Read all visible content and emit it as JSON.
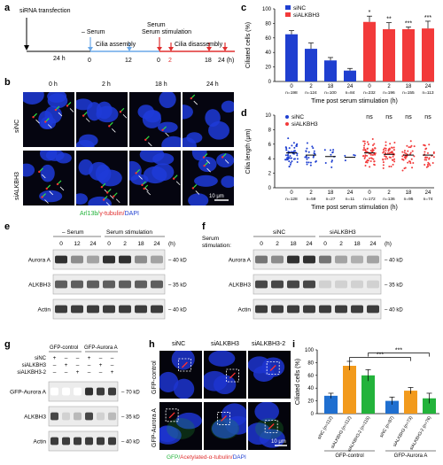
{
  "labels": {
    "a": "a",
    "b": "b",
    "c": "c",
    "d": "d",
    "e": "e",
    "f": "f",
    "g": "g",
    "h": "h",
    "i": "i"
  },
  "panel_a": {
    "transfection": "siRNA transfection",
    "hours24": "24 h",
    "minus_serum": "– Serum",
    "cilia_assembly": "Cilia assembly",
    "serum_stim": "Serum stimulation",
    "cilia_disassembly": "Cilia disassembly",
    "t0": "0",
    "t12": "12",
    "t0b": "0",
    "t2": "2",
    "t18": "18",
    "t24": "24 (h)",
    "colors": {
      "assembly": "#6aa8e8",
      "disassembly": "#e03030"
    }
  },
  "panel_b": {
    "cols": [
      "0 h",
      "2 h",
      "18 h",
      "24 h"
    ],
    "rows": [
      "siNC",
      "siALKBH3"
    ],
    "stain_arl": "Arl13b/",
    "stain_tub": "γ-tubulin/",
    "stain_dapi": "DAPI",
    "scale": "10 μm"
  },
  "panel_c": {
    "ylabel": "Ciliated cells (%)",
    "xlabel": "Time post serum stimulation (h)",
    "legend": [
      "siNC",
      "siALKBH3"
    ],
    "ticks_x": [
      "0",
      "2",
      "18",
      "24",
      "0",
      "2",
      "18",
      "24"
    ],
    "ticks_y": [
      "0",
      "20",
      "40",
      "60",
      "80",
      "100"
    ],
    "n": [
      "n=198",
      "n=124",
      "n=100",
      "n=84",
      "n=232",
      "n=196",
      "n=155",
      "n=113"
    ],
    "sig": [
      "*",
      "**",
      "***",
      "***"
    ]
  },
  "panel_d": {
    "ylabel": "Cilia length (μm)",
    "xlabel": "Time post serum stimulation (h)",
    "legend": [
      "siNC",
      "siALKBH3"
    ],
    "ticks_x": [
      "0",
      "2",
      "18",
      "24",
      "0",
      "2",
      "18",
      "24"
    ],
    "ticks_y": [
      "0",
      "2",
      "4",
      "6",
      "8",
      "10"
    ],
    "n": [
      "n=128",
      "n=59",
      "n=27",
      "n=11",
      "n=172",
      "n=136",
      "n=95",
      "n=74"
    ],
    "sig": [
      "ns",
      "ns",
      "ns",
      "ns"
    ]
  },
  "panel_e": {
    "minus_serum": "– Serum",
    "serum_stim": "Serum stimulation",
    "times": [
      "0",
      "12",
      "24",
      "0",
      "2",
      "18",
      "24"
    ],
    "unit": "(h)",
    "rows": [
      "Aurora A",
      "ALKBH3",
      "Actin"
    ],
    "mw": [
      "40 kD",
      "35 kD",
      "40 kD"
    ]
  },
  "panel_f": {
    "serum_label": "Serum",
    "stim_label": "stimulation:",
    "groups": [
      "siNC",
      "siALKBH3"
    ],
    "times": [
      "0",
      "2",
      "18",
      "24",
      "0",
      "2",
      "18",
      "24"
    ],
    "unit": "(h)",
    "rows": [
      "Aurora A",
      "ALKBH3",
      "Actin"
    ],
    "mw": [
      "40 kD",
      "35 kD",
      "40 kD"
    ]
  },
  "panel_g": {
    "groups": [
      "GFP-control",
      "GFP-Aurora A"
    ],
    "conditions": [
      "siNC",
      "siALKBH3",
      "siALKBH3-2"
    ],
    "signs": [
      [
        "+",
        "–",
        "–",
        "+",
        "–",
        "–"
      ],
      [
        "–",
        "+",
        "–",
        "–",
        "+",
        "–"
      ],
      [
        "–",
        "–",
        "+",
        "–",
        "–",
        "+"
      ]
    ],
    "rows": [
      "GFP-Aurora A",
      "ALKBH3",
      "Actin"
    ],
    "mw": [
      "70 kD",
      "35 kD",
      "40 kD"
    ]
  },
  "panel_h": {
    "cols": [
      "siNC",
      "siALKBH3",
      "siALKBH3-2"
    ],
    "rows": [
      "GFP-control",
      "GFP-Aurora A"
    ],
    "stain_gfp": "GFP/",
    "stain_tub": "Acetylated-α-tubulin/",
    "stain_dapi": "DAPI",
    "scale": "10 μm"
  },
  "panel_i": {
    "ylabel": "Ciliated cells (%)",
    "ticks_y": [
      "0",
      "20",
      "40",
      "60",
      "80",
      "100"
    ],
    "bars": [
      "siNC (n=112)",
      "siALKBH3 (n=112)",
      "siALKBH3-2 (n=115)",
      "siNC (n=87)",
      "siALKBH3 (n=73)",
      "siALKBH3-2 (n=76)"
    ],
    "groups": [
      "GFP-control",
      "GFP-Aurora A"
    ],
    "sig": [
      "***",
      "***"
    ]
  },
  "chart_data": [
    {
      "type": "bar",
      "panel": "c",
      "ylabel": "Ciliated cells (%)",
      "xlabel": "Time post serum stimulation (h)",
      "ylim": [
        0,
        100
      ],
      "categories": [
        "0",
        "2",
        "18",
        "24"
      ],
      "series": [
        {
          "name": "siNC",
          "color": "#1f3fd0",
          "values": [
            65,
            45,
            29,
            15
          ],
          "errors": [
            5,
            8,
            4,
            3
          ]
        },
        {
          "name": "siALKBH3",
          "color": "#f23a3a",
          "values": [
            82,
            72,
            72,
            73
          ],
          "errors": [
            8,
            9,
            3,
            10
          ]
        }
      ]
    },
    {
      "type": "scatter",
      "panel": "d",
      "ylabel": "Cilia length (μm)",
      "xlabel": "Time post serum stimulation (h)",
      "ylim": [
        0,
        10
      ],
      "categories": [
        "0",
        "2",
        "18",
        "24"
      ],
      "series": [
        {
          "name": "siNC",
          "color": "#1f3fd0",
          "means": [
            4.8,
            4.5,
            4.3,
            4.2
          ],
          "sd": [
            1.2,
            1.1,
            0.9,
            0.8
          ],
          "n": [
            128,
            59,
            27,
            11
          ]
        },
        {
          "name": "siALKBH3",
          "color": "#f23a3a",
          "means": [
            4.8,
            4.6,
            4.5,
            4.5
          ],
          "sd": [
            1.3,
            1.2,
            1.2,
            1.1
          ],
          "n": [
            172,
            136,
            95,
            74
          ]
        }
      ]
    },
    {
      "type": "bar",
      "panel": "i",
      "ylabel": "Ciliated cells (%)",
      "ylim": [
        0,
        100
      ],
      "categories": [
        "siNC",
        "siALKBH3",
        "siALKBH3-2",
        "siNC",
        "siALKBH3",
        "siALKBH3-2"
      ],
      "values": [
        28,
        75,
        60,
        20,
        36,
        24
      ],
      "errors": [
        4,
        7,
        9,
        6,
        5,
        8
      ],
      "colors": [
        "#1f6fd0",
        "#f29a1c",
        "#23b33b",
        "#1f6fd0",
        "#f29a1c",
        "#23b33b"
      ]
    }
  ]
}
